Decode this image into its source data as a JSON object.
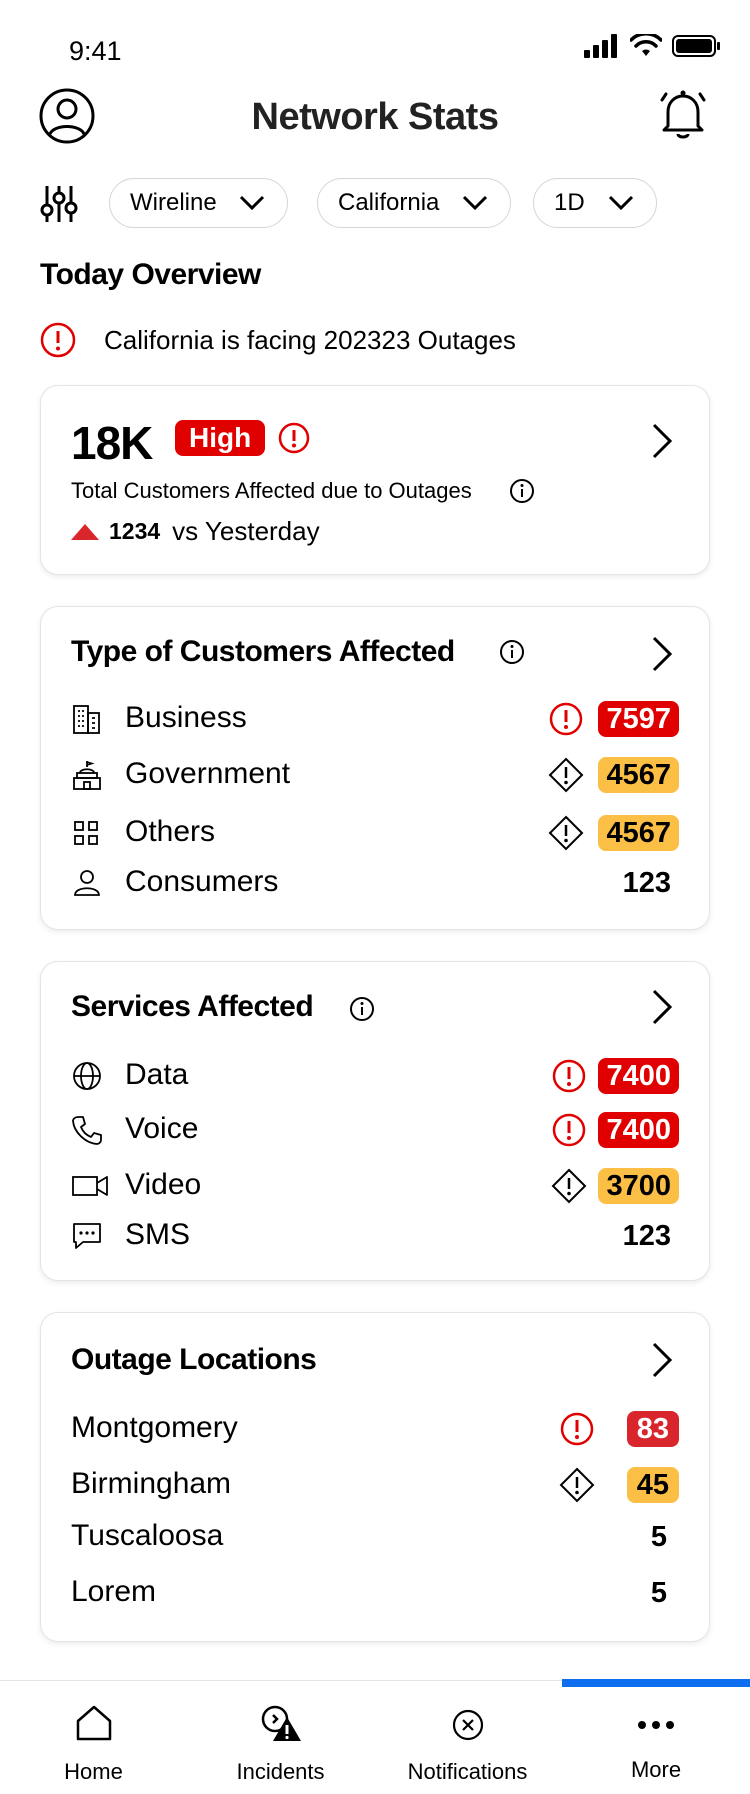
{
  "status_bar": {
    "time": "9:41"
  },
  "header": {
    "title": "Network Stats"
  },
  "filters": {
    "chips": [
      {
        "label": "Wireline"
      },
      {
        "label": "California"
      },
      {
        "label": "1D"
      }
    ]
  },
  "overview": {
    "section_title": "Today Overview",
    "alert_text": "California is facing 202323 Outages",
    "total_value": "18K",
    "severity": "High",
    "subtitle": "Total Customers Affected due to Outages",
    "trend_value": "1234",
    "trend_text": "vs Yesterday"
  },
  "customers": {
    "title": "Type of Customers Affected",
    "rows": [
      {
        "label": "Business",
        "value": "7597",
        "level": "critical",
        "icon": "building-icon"
      },
      {
        "label": "Government",
        "value": "4567",
        "level": "warning",
        "icon": "government-icon"
      },
      {
        "label": "Others",
        "value": "4567",
        "level": "warning",
        "icon": "grid-icon"
      },
      {
        "label": "Consumers",
        "value": "123",
        "level": "normal",
        "icon": "person-icon"
      }
    ]
  },
  "services": {
    "title": "Services Affected",
    "rows": [
      {
        "label": "Data",
        "value": "7400",
        "level": "critical",
        "icon": "globe-icon"
      },
      {
        "label": "Voice",
        "value": "7400",
        "level": "critical",
        "icon": "phone-icon"
      },
      {
        "label": "Video",
        "value": "3700",
        "level": "warning",
        "icon": "video-icon"
      },
      {
        "label": "SMS",
        "value": "123",
        "level": "normal",
        "icon": "message-icon"
      }
    ]
  },
  "locations": {
    "title": "Outage Locations",
    "rows": [
      {
        "label": "Montgomery",
        "value": "83",
        "level": "critical"
      },
      {
        "label": "Birmingham",
        "value": "45",
        "level": "warning"
      },
      {
        "label": "Tuscaloosa",
        "value": "5",
        "level": "normal"
      },
      {
        "label": "Lorem",
        "value": "5",
        "level": "normal"
      }
    ]
  },
  "bottom_nav": {
    "items": [
      {
        "label": "Home",
        "icon": "home-icon"
      },
      {
        "label": "Incidents",
        "icon": "incidents-icon"
      },
      {
        "label": "Notifications",
        "icon": "notifications-icon"
      },
      {
        "label": "More",
        "icon": "more-icon"
      }
    ],
    "active": "More"
  },
  "colors": {
    "critical": "#e00000",
    "warning": "#fbbf45",
    "accent": "#0d6ef0"
  }
}
